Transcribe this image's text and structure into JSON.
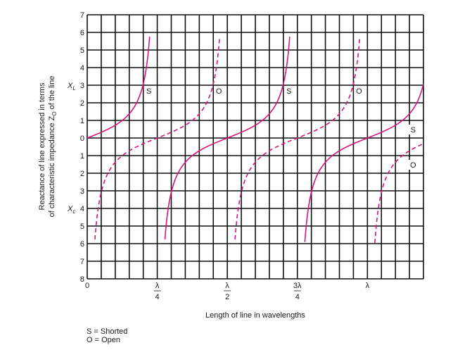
{
  "chart_data": {
    "type": "line",
    "xlabel": "Length of line in wavelengths",
    "ylabel_lines": [
      "Reactance of line expressed in terms",
      "of characteristic impedance Z",
      "O",
      " of the line"
    ],
    "xlim": [
      0,
      1.2
    ],
    "ylim": [
      -8,
      7
    ],
    "y_tick_values": [
      7,
      6,
      5,
      4,
      3,
      2,
      1,
      0,
      -1,
      -2,
      -3,
      -4,
      -5,
      -6,
      -7,
      -8
    ],
    "y_tick_labels": [
      "7",
      "6",
      "5",
      "4",
      "3",
      "2",
      "1",
      "0",
      "1",
      "2",
      "3",
      "4",
      "5",
      "6",
      "7",
      "8"
    ],
    "x_ticks": [
      {
        "x": 0,
        "num": "0",
        "den": ""
      },
      {
        "x": 0.25,
        "num": "λ",
        "den": "4"
      },
      {
        "x": 0.5,
        "num": "λ",
        "den": "2"
      },
      {
        "x": 0.75,
        "num": "3λ",
        "den": "4"
      },
      {
        "x": 1.0,
        "num": "λ",
        "den": ""
      }
    ],
    "xl_label": {
      "main": "X",
      "sub": "L"
    },
    "xc_label": {
      "main": "X",
      "sub": "c"
    },
    "grid": true,
    "series": [
      {
        "name": "S",
        "style": "solid",
        "color": "#d6167a",
        "formula": "tan(2πx)"
      },
      {
        "name": "O",
        "style": "dashed",
        "color": "#d6167a",
        "formula": "-cot(2πx)"
      }
    ],
    "curve_labels": [
      {
        "text": "S",
        "x": 0.22,
        "y": 2.6
      },
      {
        "text": "O",
        "x": 0.47,
        "y": 2.6
      },
      {
        "text": "S",
        "x": 0.72,
        "y": 2.6
      },
      {
        "text": "O",
        "x": 0.97,
        "y": 2.6
      },
      {
        "text": "S",
        "x": 1.163,
        "y": 0.4
      },
      {
        "text": "O",
        "x": 1.163,
        "y": -1.6
      }
    ],
    "legend_notes": [
      "S = Shorted",
      "O = Open"
    ]
  }
}
